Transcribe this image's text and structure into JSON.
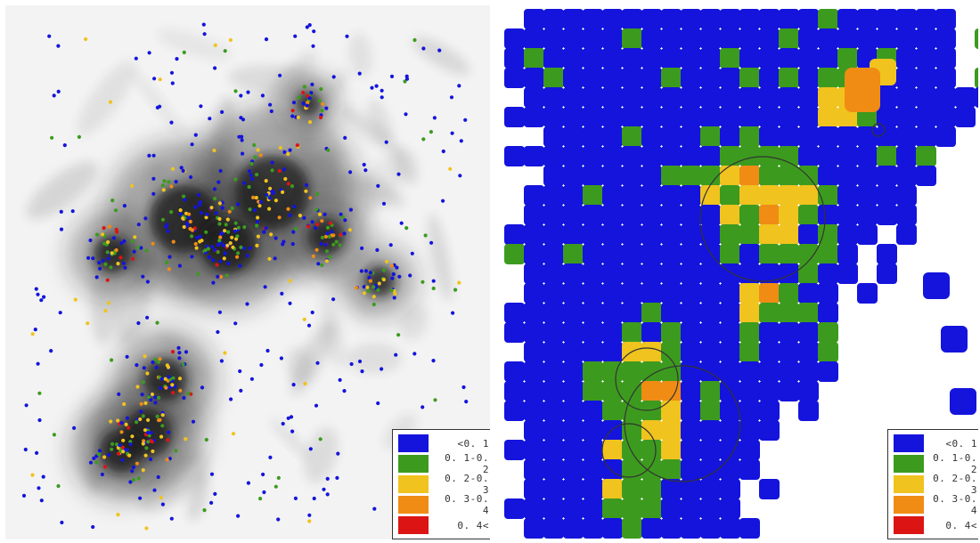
{
  "legend": {
    "items": [
      {
        "label": "<0. 1",
        "color": "#1414dc"
      },
      {
        "label": "0. 1-0. 2",
        "color": "#3c9b1e"
      },
      {
        "label": "0. 2-0. 3",
        "color": "#f0c31e"
      },
      {
        "label": "0. 3-0. 4",
        "color": "#f08c14"
      },
      {
        "label": "0. 4<",
        "color": "#dc1414"
      }
    ]
  },
  "colors": {
    "nebula": "#141414",
    "background_left": "#f3f3f3",
    "background_right": "#ffffff",
    "circle_stroke": "#333333"
  }
}
